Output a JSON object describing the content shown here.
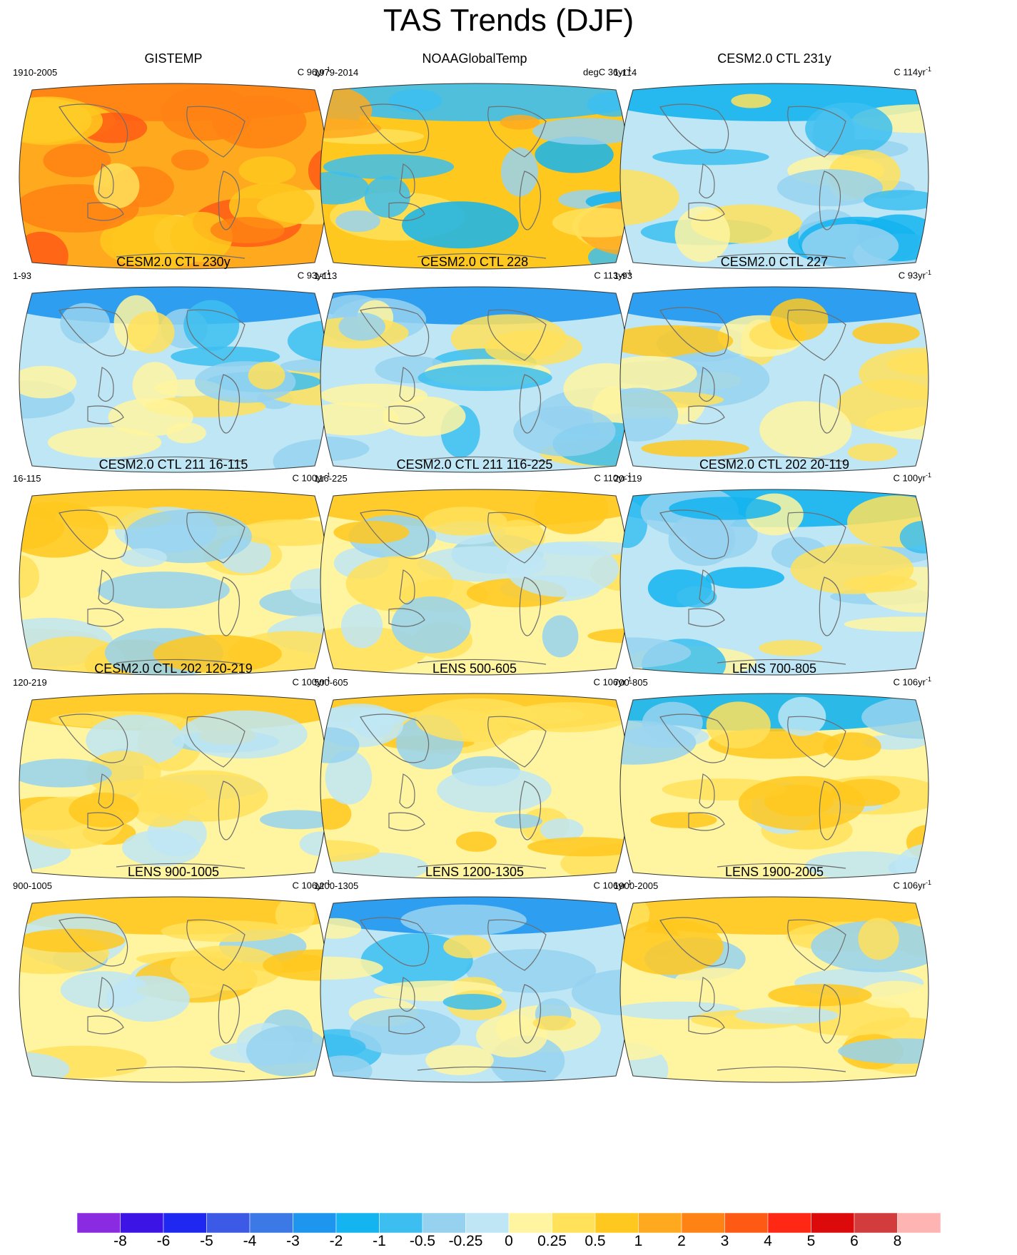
{
  "title": "TAS Trends (DJF)",
  "panels": [
    {
      "title": "GISTEMP",
      "period": "1910-2005",
      "units": "C",
      "length": "96",
      "pattern": "warm-strong"
    },
    {
      "title": "NOAAGlobalTemp",
      "period": "1979-2014",
      "units": "degC",
      "length": "36",
      "pattern": "warm-pacific-cool"
    },
    {
      "title": "CESM2.0 CTL 231y",
      "period": "1-114",
      "units": "C",
      "length": "114",
      "pattern": "cool-mild"
    },
    {
      "title": "CESM2.0 CTL 230y",
      "period": "1-93",
      "units": "C",
      "length": "93",
      "pattern": "cool-north"
    },
    {
      "title": "CESM2.0 CTL 228",
      "period": "1-113",
      "units": "C",
      "length": "113",
      "pattern": "cool-north"
    },
    {
      "title": "CESM2.0 CTL 227",
      "period": "1-93",
      "units": "C",
      "length": "93",
      "pattern": "cool-north-warm-south"
    },
    {
      "title": "CESM2.0 CTL 211 16-115",
      "period": "16-115",
      "units": "C",
      "length": "100",
      "pattern": "warm-north"
    },
    {
      "title": "CESM2.0 CTL 211 116-225",
      "period": "116-225",
      "units": "C",
      "length": "110",
      "pattern": "warm-north"
    },
    {
      "title": "CESM2.0 CTL 202 20-119",
      "period": "20-119",
      "units": "C",
      "length": "100",
      "pattern": "cool-mild"
    },
    {
      "title": "CESM2.0 CTL 202 120-219",
      "period": "120-219",
      "units": "C",
      "length": "100",
      "pattern": "warm-north"
    },
    {
      "title": "LENS 500-605",
      "period": "500-605",
      "units": "C",
      "length": "106",
      "pattern": "warm-north"
    },
    {
      "title": "LENS 700-805",
      "period": "700-805",
      "units": "C",
      "length": "106",
      "pattern": "mixed"
    },
    {
      "title": "LENS 900-1005",
      "period": "900-1005",
      "units": "C",
      "length": "106",
      "pattern": "warm-north"
    },
    {
      "title": "LENS 1200-1305",
      "period": "1200-1305",
      "units": "C",
      "length": "106",
      "pattern": "cool-north"
    },
    {
      "title": "LENS 1900-2005",
      "period": "1900-2005",
      "units": "C",
      "length": "106",
      "pattern": "warm-mild"
    }
  ],
  "colorbar": {
    "labels": [
      "-8",
      "-6",
      "-5",
      "-4",
      "-3",
      "-2",
      "-1",
      "-0.5",
      "-0.25",
      "0",
      "0.25",
      "0.5",
      "1",
      "2",
      "3",
      "4",
      "5",
      "6",
      "8"
    ],
    "colors": [
      "#8a2be2",
      "#3c14e6",
      "#1e28f0",
      "#3c5ae6",
      "#3c78e6",
      "#1e96f0",
      "#14b4f0",
      "#3cbef0",
      "#96d2f0",
      "#bee6f5",
      "#fff5a0",
      "#ffe15a",
      "#ffc81e",
      "#ffaa1e",
      "#ff8214",
      "#ff5a14",
      "#ff2814",
      "#dc0a0a",
      "#d23c3c",
      "#ffb4b4"
    ]
  }
}
